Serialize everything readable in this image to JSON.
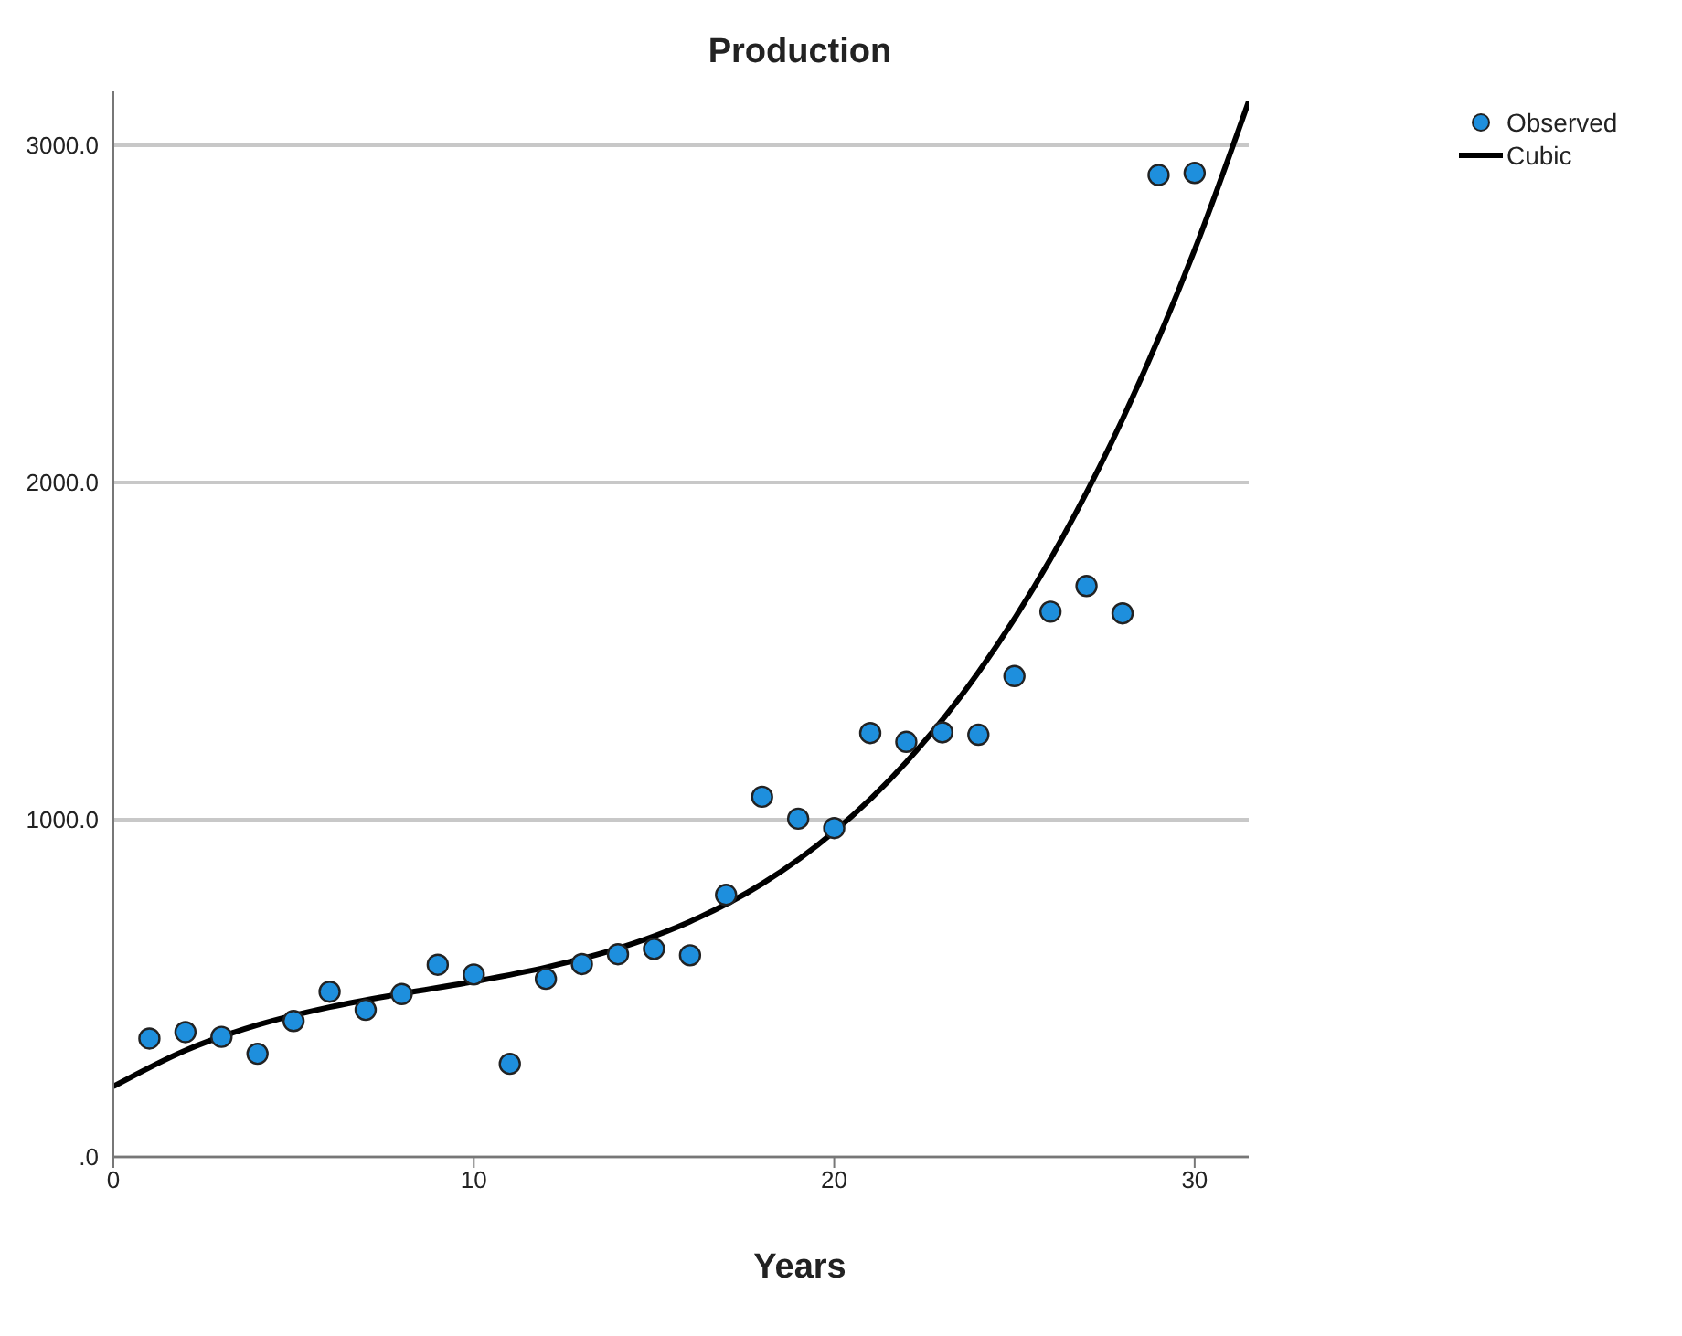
{
  "chart_data": {
    "type": "scatter",
    "title": "Production",
    "xlabel": "Years",
    "xlim": [
      0,
      31.5
    ],
    "xticks": [
      0,
      10,
      20,
      30
    ],
    "ylim": [
      0,
      3160
    ],
    "yticks": [
      {
        "value": 0,
        "label": ".0"
      },
      {
        "value": 1000,
        "label": "1000.0"
      },
      {
        "value": 2000,
        "label": "2000.0"
      },
      {
        "value": 3000,
        "label": "3000.0"
      }
    ],
    "grid": "y",
    "legend": "top right",
    "series": [
      {
        "name": "Observed",
        "marker": "circle",
        "color": "#1e8fdd",
        "x": [
          1,
          2,
          3,
          4,
          5,
          6,
          7,
          8,
          9,
          10,
          11,
          12,
          13,
          14,
          15,
          16,
          17,
          18,
          19,
          20,
          21,
          22,
          23,
          24,
          25,
          26,
          27,
          28,
          29,
          30
        ],
        "values": [
          351,
          370,
          356,
          306,
          403,
          490,
          436,
          483,
          570,
          541,
          276,
          528,
          572,
          601,
          617,
          598,
          777,
          1068,
          1003,
          975,
          1257,
          1231,
          1259,
          1252,
          1426,
          1617,
          1693,
          1612,
          2912,
          2918
        ]
      },
      {
        "name": "Cubic",
        "type": "line",
        "marker": "none",
        "line_style": "solid",
        "color": "#000000",
        "x": [
          0,
          2,
          4,
          6,
          8,
          10,
          12,
          14,
          16,
          18,
          20,
          22,
          24,
          26,
          28,
          30,
          31.5
        ],
        "values": [
          209,
          316,
          391,
          444,
          484,
          520,
          562,
          618,
          698,
          810,
          965,
          1171,
          1437,
          1773,
          2188,
          2690,
          3130
        ]
      }
    ]
  }
}
